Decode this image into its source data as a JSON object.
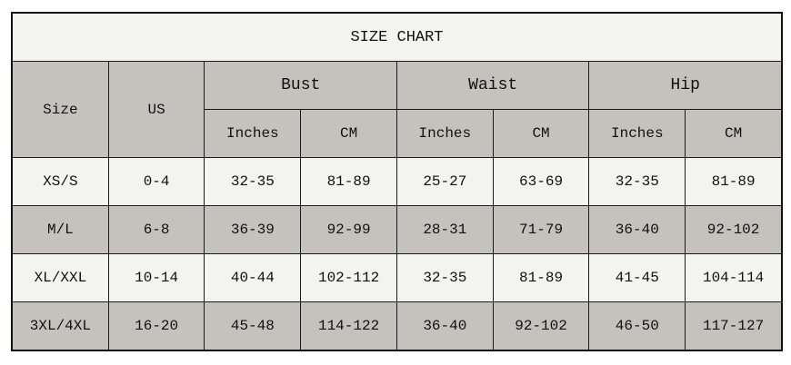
{
  "title": "SIZE CHART",
  "headers": {
    "size": "Size",
    "us": "US",
    "groups": [
      "Bust",
      "Waist",
      "Hip"
    ],
    "sub": [
      "Inches",
      "CM",
      "Inches",
      "CM",
      "Inches",
      "CM"
    ]
  },
  "rows": [
    [
      "XS/S",
      "0-4",
      "32-35",
      "81-89",
      "25-27",
      "63-69",
      "32-35",
      "81-89"
    ],
    [
      "M/L",
      "6-8",
      "36-39",
      "92-99",
      "28-31",
      "71-79",
      "36-40",
      "92-102"
    ],
    [
      "XL/XXL",
      "10-14",
      "40-44",
      "102-112",
      "32-35",
      "81-89",
      "41-45",
      "104-114"
    ],
    [
      "3XL/4XL",
      "16-20",
      "45-48",
      "114-122",
      "36-40",
      "92-102",
      "46-50",
      "117-127"
    ]
  ],
  "colors": {
    "light": "#f3f3f1",
    "gray": "#c5c1bd",
    "border": "#1a1a1a"
  }
}
